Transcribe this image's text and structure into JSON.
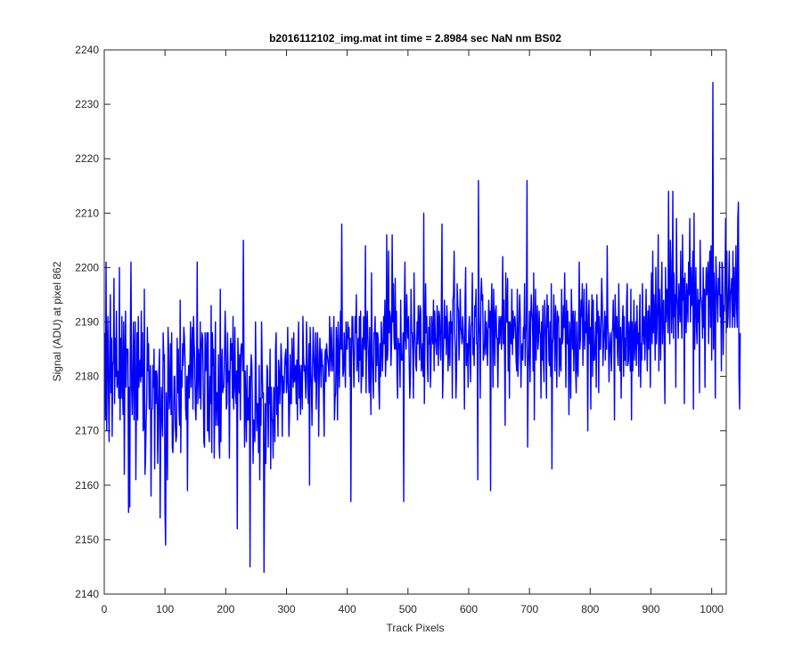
{
  "chart_data": {
    "type": "line",
    "title": "b2016112102_img.mat int time = 2.8984 sec  NaN nm BS02",
    "xlabel": "Track Pixels",
    "ylabel": "Signal (ADU) at pixel 862",
    "xlim": [
      0,
      1024
    ],
    "ylim": [
      2140,
      2240
    ],
    "xticks": [
      0,
      100,
      200,
      300,
      400,
      500,
      600,
      700,
      800,
      900,
      1000
    ],
    "yticks": [
      2140,
      2150,
      2160,
      2170,
      2180,
      2190,
      2200,
      2210,
      2220,
      2230,
      2240
    ],
    "grid": false,
    "legend": "none",
    "series_color": "#0000ff",
    "series": [
      {
        "x_start": 1,
        "x_step": 1,
        "notable_points": [
          {
            "x": 101,
            "y": 2149
          },
          {
            "x": 232,
            "y": 2145
          },
          {
            "x": 252,
            "y": 2144
          },
          {
            "x": 597,
            "y": 2216
          },
          {
            "x": 697,
            "y": 2216
          },
          {
            "x": 977,
            "y": 2234
          },
          {
            "x": 1022,
            "y": 2174
          }
        ],
        "values": [
          2188,
          2172,
          2201,
          2170,
          2185,
          2191,
          2176,
          2168,
          2185,
          2195,
          2177,
          2187,
          2169,
          2182,
          2183,
          2198,
          2175,
          2187,
          2180,
          2192,
          2178,
          2181,
          2180,
          2176,
          2200,
          2172,
          2187,
          2176,
          2191,
          2179,
          2173,
          2190,
          2162,
          2183,
          2192,
          2178,
          2185,
          2185,
          2185,
          2155,
          2178,
          2156,
          2188,
          2201,
          2178,
          2173,
          2181,
          2190,
          2172,
          2184,
          2190,
          2161,
          2176,
          2188,
          2172,
          2191,
          2178,
          2181,
          2183,
          2179,
          2192,
          2180,
          2188,
          2170,
          2171,
          2196,
          2162,
          2165,
          2172,
          2176,
          2189,
          2181,
          2186,
          2174,
          2179,
          2182,
          2158,
          2174,
          2174,
          2182,
          2178,
          2185,
          2163,
          2181,
          2175,
          2181,
          2180,
          2164,
          2171,
          2181,
          2185,
          2154,
          2171,
          2178,
          2172,
          2169,
          2188,
          2183,
          2184,
          2155,
          2149,
          2177,
          2172,
          2161,
          2189,
          2185,
          2174,
          2177,
          2186,
          2173,
          2188,
          2167,
          2166,
          2172,
          2180,
          2180,
          2171,
          2168,
          2169,
          2187,
          2177,
          2185,
          2174,
          2171,
          2194,
          2166,
          2181,
          2178,
          2186,
          2182,
          2189,
          2187,
          2183,
          2174,
          2172,
          2180,
          2159,
          2179,
          2182,
          2176,
          2182,
          2190,
          2178,
          2184,
          2189,
          2174,
          2191,
          2186,
          2183,
          2174,
          2172,
          2180,
          2201,
          2175,
          2185,
          2183,
          2176,
          2190,
          2174,
          2185,
          2188,
          2187,
          2178,
          2168,
          2167,
          2188,
          2181,
          2183,
          2188,
          2170,
          2188,
          2170,
          2168,
          2180,
          2175,
          2193,
          2166,
          2188,
          2182,
          2185,
          2165,
          2177,
          2190,
          2171,
          2177,
          2177,
          2171,
          2184,
          2168,
          2165,
          2196,
          2168,
          2181,
          2185,
          2177,
          2178,
          2178,
          2184,
          2192,
          2186,
          2174,
          2175,
          2188,
          2179,
          2181,
          2165,
          2180,
          2187,
          2183,
          2186,
          2176,
          2191,
          2174,
          2178,
          2189,
          2178,
          2175,
          2181,
          2152,
          2187,
          2182,
          2177,
          2184,
          2172,
          2185,
          2186,
          2185,
          2181,
          2205,
          2183,
          2167,
          2181,
          2175,
          2168,
          2182,
          2172,
          2176,
          2172,
          2180,
          2145,
          2181,
          2184,
          2182,
          2174,
          2164,
          2172,
          2171,
          2168,
          2190,
          2179,
          2170,
          2175,
          2175,
          2166,
          2182,
          2161,
          2176,
          2171,
          2190,
          2182,
          2176,
          2177,
          2144,
          2163,
          2175,
          2164,
          2174,
          2182,
          2181,
          2167,
          2178,
          2175,
          2185,
          2163,
          2178,
          2172,
          2172,
          2165,
          2178,
          2177,
          2168,
          2185,
          2188,
          2173,
          2178,
          2169,
          2183,
          2181,
          2175,
          2179,
          2186,
          2183,
          2169,
          2180,
          2177,
          2177,
          2182,
          2184,
          2185,
          2177,
          2179,
          2189,
          2179,
          2169,
          2173,
          2184,
          2175,
          2175,
          2187,
          2182,
          2178,
          2188,
          2179,
          2180,
          2182,
          2175,
          2183,
          2172,
          2185,
          2190,
          2176,
          2182,
          2173,
          2180,
          2182,
          2174,
          2191,
          2184,
          2181,
          2182,
          2179,
          2176,
          2190,
          2184,
          2178,
          2175,
          2186,
          2160,
          2189,
          2182,
          2178,
          2171,
          2182,
          2189,
          2184,
          2180,
          2179,
          2188,
          2174,
          2180,
          2188,
          2184,
          2169,
          2180,
          2187,
          2183,
          2178,
          2185,
          2182,
          2182,
          2176,
          2169,
          2183,
          2185,
          2179,
          2186,
          2184,
          2183,
          2182,
          2180,
          2191,
          2185,
          2181,
          2189,
          2184,
          2181,
          2184,
          2191,
          2172,
          2176,
          2177,
          2189,
          2186,
          2172,
          2190,
          2185,
          2178,
          2186,
          2192,
          2185,
          2208,
          2186,
          2180,
          2181,
          2188,
          2183,
          2178,
          2190,
          2185,
          2185,
          2190,
          2187,
          2189,
          2180,
          2187,
          2157,
          2183,
          2191,
          2191,
          2184,
          2178,
          2184,
          2191,
          2188,
          2195,
          2181,
          2183,
          2187,
          2179,
          2191,
          2183,
          2192,
          2177,
          2181,
          2187,
          2180,
          2191,
          2188,
          2185,
          2204,
          2177,
          2188,
          2192,
          2187,
          2183,
          2177,
          2189,
          2181,
          2173,
          2199,
          2184,
          2180,
          2176,
          2188,
          2188,
          2191,
          2179,
          2188,
          2182,
          2188,
          2187,
          2178,
          2174,
          2186,
          2180,
          2190,
          2186,
          2181,
          2186,
          2191,
          2186,
          2194,
          2180,
          2184,
          2206,
          2183,
          2185,
          2203,
          2188,
          2192,
          2191,
          2182,
          2186,
          2206,
          2190,
          2197,
          2187,
          2185,
          2198,
          2185,
          2192,
          2180,
          2176,
          2187,
          2185,
          2186,
          2178,
          2194,
          2183,
          2184,
          2183,
          2188,
          2157,
          2192,
          2201,
          2187,
          2185,
          2195,
          2189,
          2187,
          2191,
          2183,
          2176,
          2180,
          2196,
          2188,
          2188,
          2184,
          2176,
          2199,
          2189,
          2186,
          2182,
          2181,
          2190,
          2186,
          2193,
          2190,
          2183,
          2193,
          2192,
          2181,
          2182,
          2186,
          2180,
          2210,
          2175,
          2187,
          2197,
          2188,
          2191,
          2182,
          2179,
          2189,
          2186,
          2191,
          2178,
          2183,
          2191,
          2188,
          2186,
          2194,
          2181,
          2192,
          2187,
          2186,
          2184,
          2193,
          2190,
          2182,
          2192,
          2191,
          2186,
          2183,
          2193,
          2208,
          2176,
          2181,
          2188,
          2194,
          2187,
          2191,
          2184,
          2193,
          2190,
          2181,
          2185,
          2190,
          2182,
          2192,
          2188,
          2190,
          2176,
          2194,
          2195,
          2203,
          2188,
          2185,
          2176,
          2181,
          2197,
          2193,
          2192,
          2183,
          2187,
          2196,
          2189,
          2188,
          2186,
          2191,
          2188,
          2186,
          2174,
          2194,
          2200,
          2182,
          2186,
          2186,
          2178,
          2188,
          2191,
          2184,
          2179,
          2189,
          2190,
          2199,
          2184,
          2187,
          2182,
          2193,
          2191,
          2196,
          2186,
          2186,
          2161,
          2216,
          2191,
          2187,
          2176,
          2195,
          2198,
          2194,
          2195,
          2183,
          2184,
          2186,
          2192,
          2184,
          2190,
          2188,
          2182,
          2188,
          2194,
          2189,
          2192,
          2159,
          2191,
          2197,
          2189,
          2178,
          2196,
          2190,
          2182,
          2192,
          2193,
          2187,
          2187,
          2178,
          2187,
          2191,
          2186,
          2190,
          2191,
          2185,
          2191,
          2202,
          2186,
          2194,
          2185,
          2171,
          2199,
          2190,
          2190,
          2198,
          2181,
          2190,
          2176,
          2190,
          2188,
          2186,
          2196,
          2184,
          2192,
          2187,
          2190,
          2191,
          2189,
          2183,
          2181,
          2196,
          2180,
          2184,
          2192,
          2195,
          2190,
          2178,
          2185,
          2186,
          2183,
          2189,
          2187,
          2197,
          2182,
          2188,
          2190,
          2216,
          2167,
          2181,
          2185,
          2192,
          2179,
          2190,
          2195,
          2192,
          2190,
          2181,
          2199,
          2172,
          2188,
          2196,
          2183,
          2190,
          2193,
          2185,
          2187,
          2192,
          2188,
          2188,
          2176,
          2190,
          2183,
          2193,
          2183,
          2179,
          2194,
          2191,
          2187,
          2176,
          2195,
          2189,
          2193,
          2183,
          2182,
          2190,
          2180,
          2197,
          2163,
          2186,
          2187,
          2195,
          2190,
          2181,
          2193,
          2189,
          2178,
          2192,
          2190,
          2191,
          2180,
          2187,
          2183,
          2181,
          2196,
          2186,
          2187,
          2193,
          2189,
          2199,
          2188,
          2178,
          2194,
          2186,
          2192,
          2185,
          2173,
          2190,
          2187,
          2176,
          2196,
          2190,
          2185,
          2192,
          2181,
          2189,
          2192,
          2181,
          2177,
          2190,
          2182,
          2180,
          2189,
          2201,
          2185,
          2187,
          2194,
          2191,
          2197,
          2182,
          2190,
          2196,
          2185,
          2190,
          2188,
          2197,
          2188,
          2170,
          2191,
          2194,
          2186,
          2189,
          2174,
          2190,
          2195,
          2180,
          2194,
          2183,
          2183,
          2186,
          2190,
          2178,
          2195,
          2188,
          2192,
          2177,
          2191,
          2185,
          2185,
          2191,
          2198,
          2193,
          2182,
          2186,
          2189,
          2192,
          2183,
          2191,
          2185,
          2204,
          2190,
          2187,
          2179,
          2185,
          2188,
          2185,
          2181,
          2188,
          2189,
          2194,
          2187,
          2172,
          2195,
          2190,
          2187,
          2191,
          2184,
          2182,
          2197,
          2189,
          2181,
          2189,
          2176,
          2186,
          2190,
          2193,
          2180,
          2191,
          2183,
          2187,
          2182,
          2194,
          2197,
          2182,
          2183,
          2190,
          2187,
          2181,
          2196,
          2172,
          2190,
          2181,
          2186,
          2194,
          2183,
          2188,
          2190,
          2182,
          2193,
          2186,
          2188,
          2180,
          2190,
          2195,
          2178,
          2186,
          2183,
          2197,
          2189,
          2186,
          2191,
          2183,
          2188,
          2196,
          2187,
          2181,
          2192,
          2185,
          2193,
          2190,
          2178,
          2193,
          2199,
          2186,
          2203,
          2188,
          2195,
          2191,
          2183,
          2200,
          2186,
          2189,
          2194,
          2206,
          2181,
          2196,
          2190,
          2183,
          2194,
          2201,
          2186,
          2193,
          2194,
          2184,
          2175,
          2200,
          2190,
          2196,
          2194,
          2188,
          2214,
          2192,
          2186,
          2205,
          2201,
          2188,
          2192,
          2214,
          2187,
          2199,
          2191,
          2195,
          2178,
          2209,
          2195,
          2193,
          2187,
          2197,
          2193,
          2190,
          2203,
          2192,
          2187,
          2206,
          2194,
          2198,
          2175,
          2199,
          2192,
          2188,
          2197,
          2194,
          2190,
          2201,
          2195,
          2209,
          2190,
          2200,
          2193,
          2195,
          2203,
          2174,
          2210,
          2185,
          2193,
          2200,
          2189,
          2186,
          2196,
          2190,
          2194,
          2177,
          2205,
          2195,
          2194,
          2192,
          2187,
          2200,
          2189,
          2196,
          2178,
          2194,
          2200,
          2195,
          2197,
          2201,
          2186,
          2198,
          2203,
          2189,
          2204,
          2183,
          2195,
          2234,
          2185,
          2199,
          2193,
          2176,
          2202,
          2197,
          2194,
          2190,
          2198,
          2195,
          2201,
          2191,
          2195,
          2181,
          2201,
          2200,
          2184,
          2193,
          2192,
          2199,
          2209,
          2188,
          2203,
          2189,
          2191,
          2197,
          2203,
          2189,
          2195,
          2196,
          2198,
          2189,
          2203,
          2191,
          2200,
          2189,
          2195,
          2204,
          2193,
          2189,
          2209,
          2212,
          2180,
          2174,
          2188
        ]
      }
    ]
  }
}
